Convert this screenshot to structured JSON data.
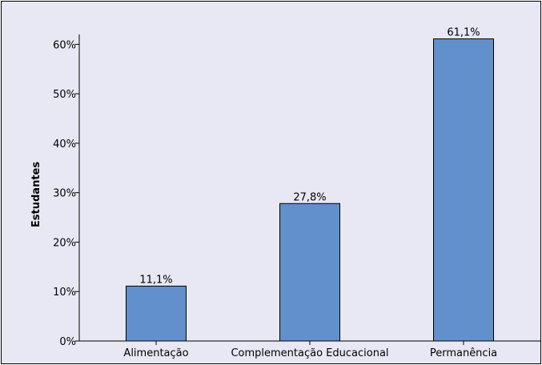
{
  "chart_data": {
    "type": "bar",
    "title": "",
    "xlabel": "",
    "ylabel": "Estudantes",
    "categories": [
      "Alimentação",
      "Complementação Educacional",
      "Permanência"
    ],
    "values": [
      11.1,
      27.8,
      61.1
    ],
    "data_labels": [
      "11,1%",
      "27,8%",
      "61,1%"
    ],
    "ylim": [
      0,
      62
    ],
    "yticks": [
      0,
      10,
      20,
      30,
      40,
      50,
      60
    ],
    "ytick_labels": [
      "0%",
      "10%",
      "20%",
      "30%",
      "40%",
      "50%",
      "60%"
    ],
    "grid": false,
    "legend": "none",
    "colors": {
      "background": "#e8e8f4",
      "bar_fill": "#6190cc",
      "bar_stroke": "#000000",
      "frame": "#000000"
    }
  }
}
